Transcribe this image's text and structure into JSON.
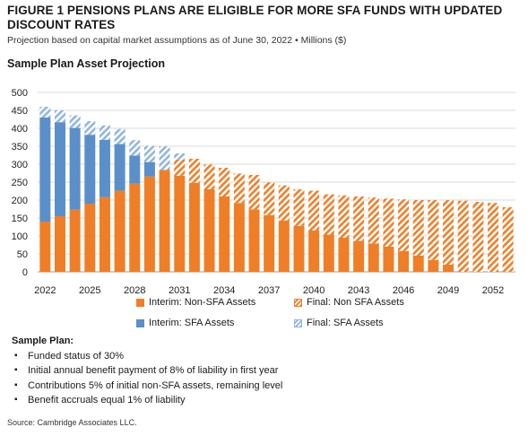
{
  "figure": {
    "title": "FIGURE 1  PENSIONS PLANS ARE ELIGIBLE FOR MORE SFA FUNDS WITH UPDATED DISCOUNT RATES",
    "subtitle": "Projection based on capital market assumptions as of June 30, 2022 • Millions ($)",
    "source": "Source: Cambridge Associates LLC."
  },
  "notes": {
    "heading": "Sample Plan:",
    "items": [
      "Funded status of 30%",
      "Initial annual benefit payment of 8% of liability in first year",
      "Contributions 5% of initial non-SFA assets, remaining level",
      "Benefit accruals equal 1% of liability"
    ]
  },
  "colors": {
    "interim_non_sfa": "#f07e26",
    "interim_sfa": "#5b8fc9",
    "final_non_sfa_hatch": "#f07e26",
    "final_sfa_hatch": "#8fb6e0",
    "grid": "#d9d9d9"
  },
  "chart_data": {
    "type": "bar",
    "stacked": true,
    "title": "Sample Plan Asset Projection",
    "xlabel": "",
    "ylabel": "",
    "ylim": [
      0,
      500
    ],
    "yticks": [
      0,
      50,
      100,
      150,
      200,
      250,
      300,
      350,
      400,
      450,
      500
    ],
    "categories": [
      2022,
      2023,
      2024,
      2025,
      2026,
      2027,
      2028,
      2029,
      2030,
      2031,
      2032,
      2033,
      2034,
      2035,
      2036,
      2037,
      2038,
      2039,
      2040,
      2041,
      2042,
      2043,
      2044,
      2045,
      2046,
      2047,
      2048,
      2049,
      2050,
      2051,
      2052,
      2053
    ],
    "xtick_labels": [
      "2022",
      "2025",
      "2028",
      "2031",
      "2034",
      "2037",
      "2040",
      "2043",
      "2046",
      "2049",
      "2052"
    ],
    "grid": true,
    "legend_position": "bottom",
    "series": [
      {
        "name": "Interim: Non-SFA Assets",
        "style": "solid",
        "color": "#f07e26",
        "values": [
          140,
          155,
          173,
          190,
          208,
          226,
          246,
          266,
          284,
          268,
          248,
          230,
          210,
          192,
          174,
          158,
          143,
          128,
          115,
          104,
          95,
          86,
          79,
          70,
          58,
          45,
          33,
          20,
          0,
          0,
          0,
          0
        ]
      },
      {
        "name": "Interim: SFA Assets",
        "style": "solid",
        "color": "#5b8fc9",
        "values": [
          290,
          262,
          228,
          192,
          160,
          130,
          78,
          40,
          0,
          0,
          0,
          0,
          0,
          0,
          0,
          0,
          0,
          0,
          0,
          0,
          0,
          0,
          0,
          0,
          0,
          0,
          0,
          0,
          0,
          0,
          0,
          0
        ]
      },
      {
        "name": "Final: Non SFA Assets",
        "style": "hatch",
        "color": "#f07e26",
        "values": [
          0,
          0,
          0,
          0,
          0,
          0,
          0,
          0,
          0,
          45,
          67,
          69,
          80,
          82,
          96,
          91,
          98,
          102,
          111,
          112,
          118,
          124,
          128,
          134,
          144,
          155,
          167,
          180,
          198,
          195,
          192,
          180
        ]
      },
      {
        "name": "Final: SFA Assets",
        "style": "hatch",
        "color": "#8fb6e0",
        "values": [
          30,
          33,
          35,
          38,
          40,
          42,
          43,
          45,
          66,
          17,
          0,
          0,
          0,
          0,
          0,
          0,
          0,
          0,
          0,
          0,
          0,
          0,
          0,
          0,
          0,
          0,
          0,
          0,
          0,
          0,
          0,
          0
        ]
      }
    ]
  }
}
